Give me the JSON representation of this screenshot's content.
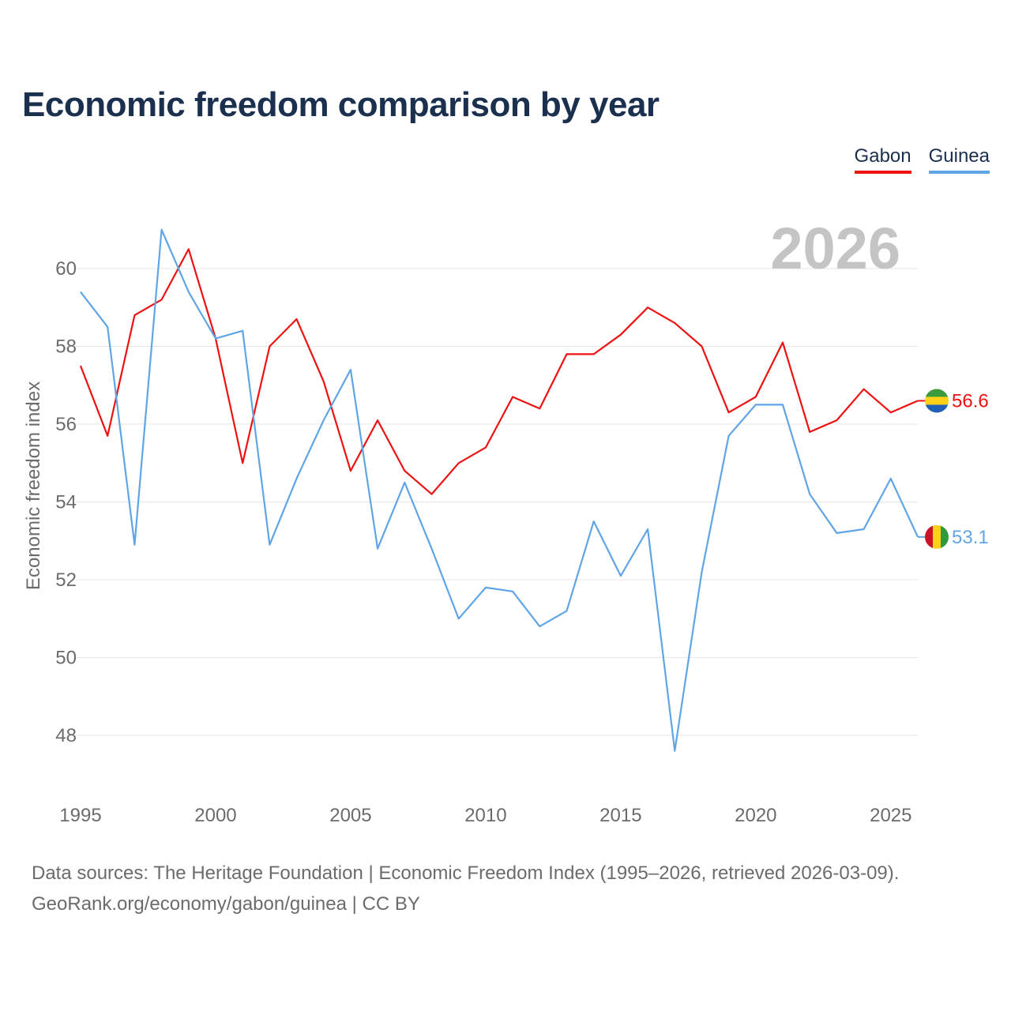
{
  "chart_data": {
    "type": "line",
    "title": "Economic freedom comparison by year",
    "xlabel": "",
    "ylabel": "Economic freedom index",
    "year_label": "2026",
    "x": [
      1995,
      1996,
      1997,
      1998,
      1999,
      2000,
      2001,
      2002,
      2003,
      2004,
      2005,
      2006,
      2007,
      2008,
      2009,
      2010,
      2011,
      2012,
      2013,
      2014,
      2015,
      2016,
      2017,
      2018,
      2019,
      2020,
      2021,
      2022,
      2023,
      2024,
      2025,
      2026
    ],
    "xlim": [
      1995,
      2026
    ],
    "ylim": [
      46.5,
      62
    ],
    "xticks": [
      1995,
      2000,
      2005,
      2010,
      2015,
      2020,
      2025
    ],
    "yticks": [
      48,
      50,
      52,
      54,
      56,
      58,
      60
    ],
    "grid": true,
    "legend_position": "top-right",
    "series": [
      {
        "name": "Gabon",
        "color": "#ee1111",
        "end_label": "56.6",
        "flag_icon": "gabon-flag-icon",
        "values": [
          57.5,
          55.7,
          58.8,
          59.2,
          60.5,
          58.2,
          55.0,
          58.0,
          58.7,
          57.1,
          54.8,
          56.1,
          54.8,
          54.2,
          55.0,
          55.4,
          56.7,
          56.4,
          57.8,
          57.8,
          58.3,
          59.0,
          58.6,
          58.0,
          56.3,
          56.7,
          58.1,
          55.8,
          56.1,
          56.9,
          56.3,
          56.6
        ]
      },
      {
        "name": "Guinea",
        "color": "#5fa5e6",
        "end_label": "53.1",
        "flag_icon": "guinea-flag-icon",
        "values": [
          59.4,
          58.5,
          52.9,
          61.0,
          59.4,
          58.2,
          58.4,
          52.9,
          54.6,
          56.1,
          57.4,
          52.8,
          54.5,
          52.8,
          51.0,
          51.8,
          51.7,
          50.8,
          51.2,
          53.5,
          52.1,
          53.3,
          47.6,
          52.2,
          55.7,
          56.5,
          56.5,
          54.2,
          53.2,
          53.3,
          54.6,
          53.1
        ]
      }
    ]
  },
  "footer": {
    "line1": "Data sources: The Heritage Foundation | Economic Freedom Index (1995–2026, retrieved 2026-03-09).",
    "line2": "GeoRank.org/economy/gabon/guinea | CC BY"
  }
}
